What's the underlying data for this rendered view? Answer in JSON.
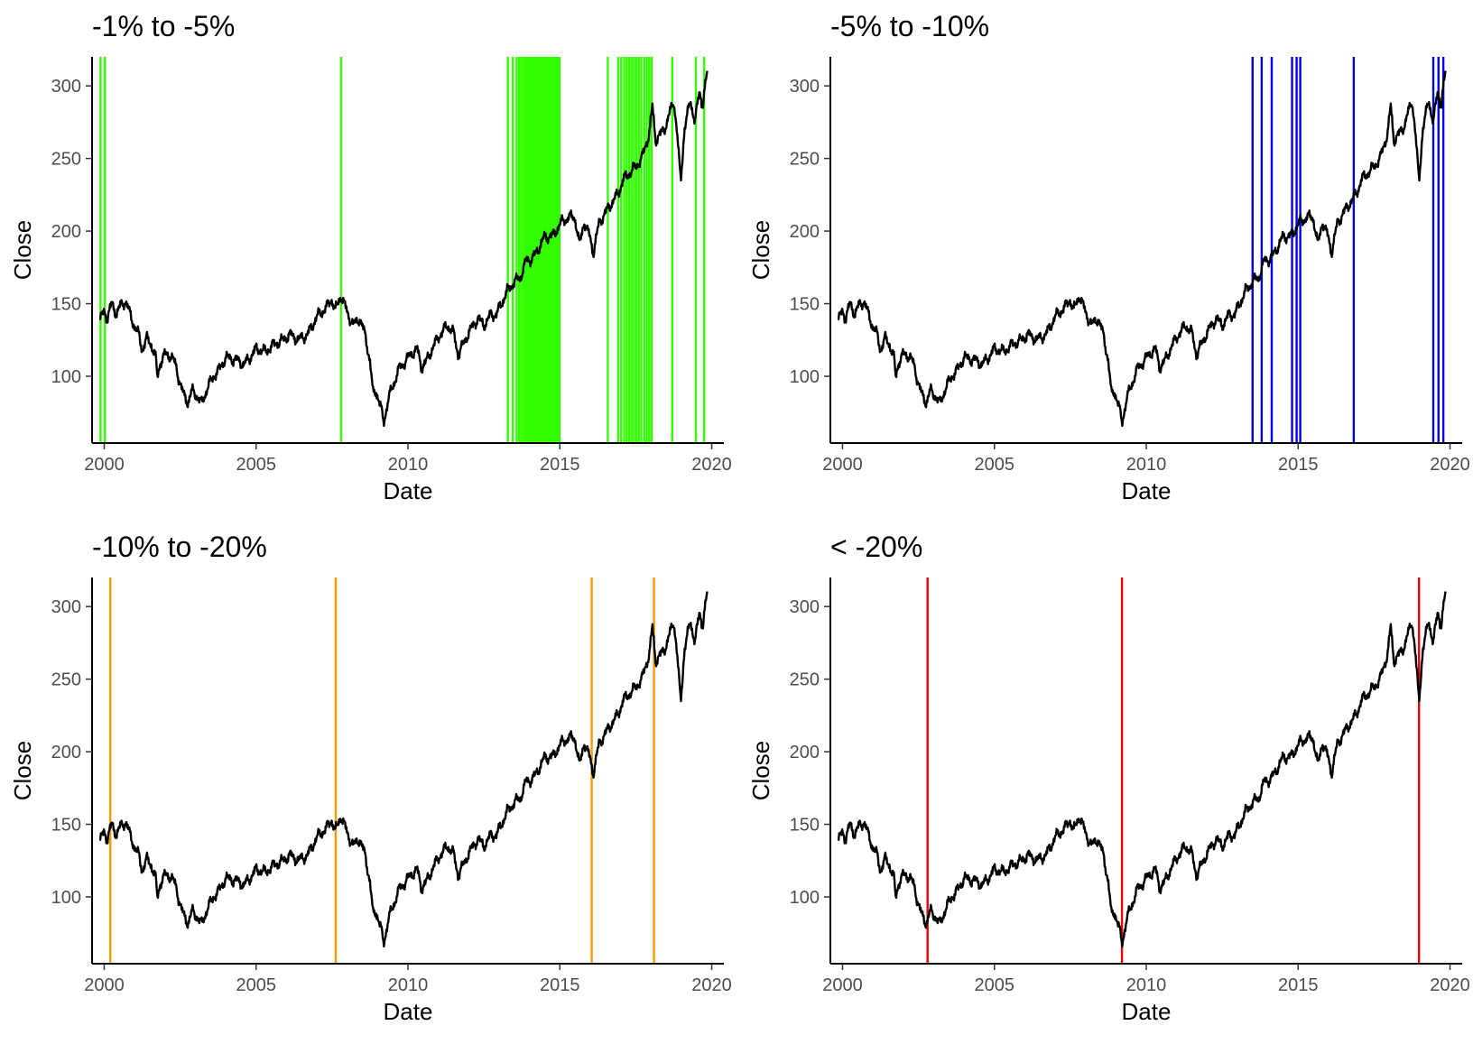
{
  "chart_data": [
    {
      "type": "line",
      "title": "-1% to -5%",
      "xlabel": "Date",
      "ylabel": "Close",
      "xlim": [
        1999.6,
        2020.4
      ],
      "ylim": [
        54,
        320
      ],
      "x_ticks": [
        "2000",
        "2005",
        "2010",
        "2015",
        "2020"
      ],
      "y_ticks": [
        "100",
        "150",
        "200",
        "250",
        "300"
      ],
      "grid": false,
      "series": [
        {
          "color": "#000000"
        }
      ],
      "marker_color": "#33ff00",
      "vlines": [
        1999.88,
        2000.02,
        2007.8,
        2013.29,
        2013.45,
        2013.58,
        2013.66,
        2013.73,
        2013.8,
        2013.86,
        2013.92,
        2013.98,
        2014.04,
        2014.1,
        2014.16,
        2014.22,
        2014.27,
        2014.33,
        2014.39,
        2014.45,
        2014.51,
        2014.57,
        2014.63,
        2014.69,
        2014.75,
        2014.81,
        2014.87,
        2014.93,
        2014.99,
        2016.58,
        2016.92,
        2017.02,
        2017.12,
        2017.2,
        2017.28,
        2017.36,
        2017.44,
        2017.52,
        2017.6,
        2017.68,
        2017.78,
        2017.86,
        2017.94,
        2018.02,
        2018.7,
        2019.48,
        2019.75
      ]
    },
    {
      "type": "line",
      "title": "-5% to -10%",
      "xlabel": "Date",
      "ylabel": "Close",
      "xlim": [
        1999.6,
        2020.4
      ],
      "ylim": [
        54,
        320
      ],
      "x_ticks": [
        "2000",
        "2005",
        "2010",
        "2015",
        "2020"
      ],
      "y_ticks": [
        "100",
        "150",
        "200",
        "250",
        "300"
      ],
      "grid": false,
      "series": [
        {
          "color": "#000000"
        }
      ],
      "marker_color": "#0000ee",
      "vlines": [
        2013.5,
        2013.8,
        2014.13,
        2014.8,
        2014.95,
        2015.07,
        2016.83,
        2019.45,
        2019.62,
        2019.78
      ]
    },
    {
      "type": "line",
      "title": "-10% to -20%",
      "xlabel": "Date",
      "ylabel": "Close",
      "xlim": [
        1999.6,
        2020.4
      ],
      "ylim": [
        54,
        320
      ],
      "x_ticks": [
        "2000",
        "2005",
        "2010",
        "2015",
        "2020"
      ],
      "y_ticks": [
        "100",
        "150",
        "200",
        "250",
        "300"
      ],
      "grid": false,
      "series": [
        {
          "color": "#000000"
        }
      ],
      "marker_color": "#ff9900",
      "vlines": [
        2000.2,
        2007.62,
        2016.05,
        2018.1
      ]
    },
    {
      "type": "line",
      "title": "< -20%",
      "xlabel": "Date",
      "ylabel": "Close",
      "xlim": [
        1999.6,
        2020.4
      ],
      "ylim": [
        54,
        320
      ],
      "x_ticks": [
        "2000",
        "2005",
        "2010",
        "2015",
        "2020"
      ],
      "y_ticks": [
        "100",
        "150",
        "200",
        "250",
        "300"
      ],
      "grid": false,
      "series": [
        {
          "color": "#000000"
        }
      ],
      "marker_color": "#ee0000",
      "vlines": [
        2002.8,
        2009.2,
        2018.98
      ]
    }
  ],
  "price_points": [
    [
      1999.85,
      138
    ],
    [
      2000.0,
      145
    ],
    [
      2000.1,
      140
    ],
    [
      2000.25,
      150
    ],
    [
      2000.4,
      143
    ],
    [
      2000.55,
      149
    ],
    [
      2000.7,
      152
    ],
    [
      2000.85,
      143
    ],
    [
      2001.0,
      134
    ],
    [
      2001.15,
      128
    ],
    [
      2001.25,
      118
    ],
    [
      2001.4,
      126
    ],
    [
      2001.55,
      122
    ],
    [
      2001.7,
      112
    ],
    [
      2001.75,
      99
    ],
    [
      2001.85,
      110
    ],
    [
      2002.0,
      115
    ],
    [
      2002.2,
      114
    ],
    [
      2002.35,
      108
    ],
    [
      2002.5,
      95
    ],
    [
      2002.6,
      88
    ],
    [
      2002.75,
      82
    ],
    [
      2002.9,
      90
    ],
    [
      2003.05,
      87
    ],
    [
      2003.2,
      81
    ],
    [
      2003.4,
      92
    ],
    [
      2003.6,
      100
    ],
    [
      2003.8,
      105
    ],
    [
      2004.0,
      113
    ],
    [
      2004.2,
      112
    ],
    [
      2004.4,
      111
    ],
    [
      2004.6,
      108
    ],
    [
      2004.8,
      113
    ],
    [
      2005.0,
      119
    ],
    [
      2005.3,
      117
    ],
    [
      2005.6,
      122
    ],
    [
      2005.9,
      125
    ],
    [
      2006.1,
      129
    ],
    [
      2006.4,
      125
    ],
    [
      2006.7,
      129
    ],
    [
      2007.0,
      141
    ],
    [
      2007.3,
      147
    ],
    [
      2007.5,
      153
    ],
    [
      2007.6,
      145
    ],
    [
      2007.8,
      156
    ],
    [
      2008.0,
      144
    ],
    [
      2008.2,
      135
    ],
    [
      2008.4,
      140
    ],
    [
      2008.6,
      128
    ],
    [
      2008.75,
      110
    ],
    [
      2008.85,
      88
    ],
    [
      2008.95,
      90
    ],
    [
      2009.1,
      79
    ],
    [
      2009.2,
      68
    ],
    [
      2009.35,
      84
    ],
    [
      2009.5,
      93
    ],
    [
      2009.7,
      105
    ],
    [
      2009.9,
      110
    ],
    [
      2010.1,
      115
    ],
    [
      2010.3,
      119
    ],
    [
      2010.45,
      106
    ],
    [
      2010.6,
      110
    ],
    [
      2010.8,
      119
    ],
    [
      2011.0,
      127
    ],
    [
      2011.3,
      135
    ],
    [
      2011.5,
      130
    ],
    [
      2011.65,
      115
    ],
    [
      2011.8,
      121
    ],
    [
      2012.0,
      130
    ],
    [
      2012.3,
      140
    ],
    [
      2012.5,
      135
    ],
    [
      2012.75,
      143
    ],
    [
      2012.9,
      142
    ],
    [
      2013.1,
      151
    ],
    [
      2013.3,
      160
    ],
    [
      2013.5,
      165
    ],
    [
      2013.7,
      168
    ],
    [
      2013.9,
      180
    ],
    [
      2014.1,
      181
    ],
    [
      2014.3,
      188
    ],
    [
      2014.5,
      196
    ],
    [
      2014.8,
      197
    ],
    [
      2015.0,
      205
    ],
    [
      2015.3,
      210
    ],
    [
      2015.5,
      209
    ],
    [
      2015.65,
      190
    ],
    [
      2015.8,
      207
    ],
    [
      2016.0,
      195
    ],
    [
      2016.1,
      185
    ],
    [
      2016.3,
      206
    ],
    [
      2016.6,
      216
    ],
    [
      2016.9,
      225
    ],
    [
      2017.1,
      236
    ],
    [
      2017.4,
      242
    ],
    [
      2017.7,
      250
    ],
    [
      2017.95,
      268
    ],
    [
      2018.05,
      286
    ],
    [
      2018.15,
      263
    ],
    [
      2018.3,
      266
    ],
    [
      2018.5,
      273
    ],
    [
      2018.75,
      290
    ],
    [
      2018.85,
      270
    ],
    [
      2018.98,
      234
    ],
    [
      2019.1,
      270
    ],
    [
      2019.3,
      290
    ],
    [
      2019.45,
      275
    ],
    [
      2019.6,
      297
    ],
    [
      2019.7,
      286
    ],
    [
      2019.85,
      309
    ]
  ]
}
